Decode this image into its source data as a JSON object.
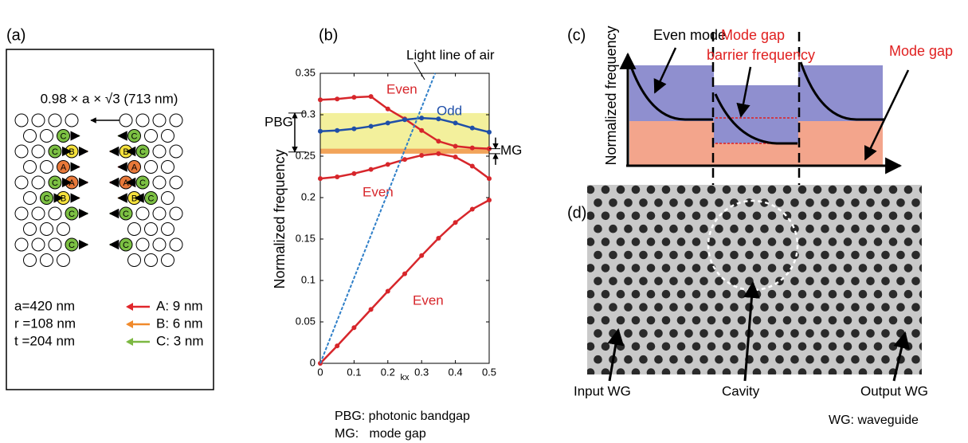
{
  "panel_a": {
    "label": "(a)",
    "title": "0.98 × a × √3 (713 nm)",
    "params": [
      "a=420 nm",
      "r =108 nm",
      "t =204 nm"
    ],
    "legend": [
      {
        "letter": "A",
        "text": "A: 9 nm",
        "color": "#e0262b",
        "fill": "#e8793a"
      },
      {
        "letter": "B",
        "text": "B: 6 nm",
        "color": "#f08a2c",
        "fill": "#f6e23c"
      },
      {
        "letter": "C",
        "text": "C: 3 nm",
        "color": "#7cb842",
        "fill": "#7cc043"
      }
    ]
  },
  "chart_data": {
    "type": "line",
    "label": "(b)",
    "xlabel": "kx",
    "ylabel": "Normalized frequency",
    "x": [
      0,
      0.05,
      0.1,
      0.15,
      0.2,
      0.25,
      0.3,
      0.35,
      0.4,
      0.45,
      0.5
    ],
    "series": [
      {
        "name": "Even",
        "color": "#d7262b",
        "values": [
          0.318,
          0.319,
          0.321,
          0.322,
          0.307,
          0.295,
          0.281,
          0.268,
          0.262,
          0.26,
          0.259
        ]
      },
      {
        "name": "Odd",
        "color": "#1f4fa8",
        "values": [
          0.28,
          0.281,
          0.283,
          0.286,
          0.29,
          0.294,
          0.296,
          0.295,
          0.29,
          0.284,
          0.279
        ]
      },
      {
        "name": "Even",
        "color": "#d7262b",
        "values": [
          0.223,
          0.225,
          0.229,
          0.234,
          0.24,
          0.246,
          0.251,
          0.253,
          0.249,
          0.238,
          0.223
        ]
      },
      {
        "name": "Even",
        "color": "#d7262b",
        "values": [
          0,
          0.021,
          0.043,
          0.065,
          0.087,
          0.108,
          0.13,
          0.151,
          0.17,
          0.186,
          0.197
        ]
      },
      {
        "name": "Light line of air",
        "color": "#2f7fc8",
        "dashed": true,
        "x": [
          0,
          0.34
        ],
        "values": [
          0,
          0.35
        ]
      }
    ],
    "bands": [
      {
        "name": "PBG",
        "range": [
          0.255,
          0.302
        ],
        "color": "#f3f09c"
      },
      {
        "name": "MG",
        "range": [
          0.253,
          0.259
        ],
        "color": "#f2a45a"
      }
    ],
    "xlim": [
      0,
      0.5
    ],
    "xticks": [
      0,
      0.1,
      0.2,
      0.3,
      0.4,
      0.5
    ],
    "ylim": [
      0,
      0.35
    ],
    "yticks": [
      0,
      0.05,
      0.1,
      0.15,
      0.2,
      0.25,
      0.3,
      0.35
    ],
    "notes": [
      "PBG: photonic bandgap",
      "MG:   mode gap"
    ]
  },
  "panel_c": {
    "label": "(c)",
    "ylabel": "Normalized frequency",
    "even_mode": "Even mode",
    "barrier": [
      "Mode gap",
      "barrier frequency"
    ],
    "mode_gap": "Mode gap"
  },
  "panel_d": {
    "label": "(d)",
    "input": "Input WG",
    "cavity": "Cavity",
    "output": "Output WG",
    "note": "WG: waveguide"
  }
}
